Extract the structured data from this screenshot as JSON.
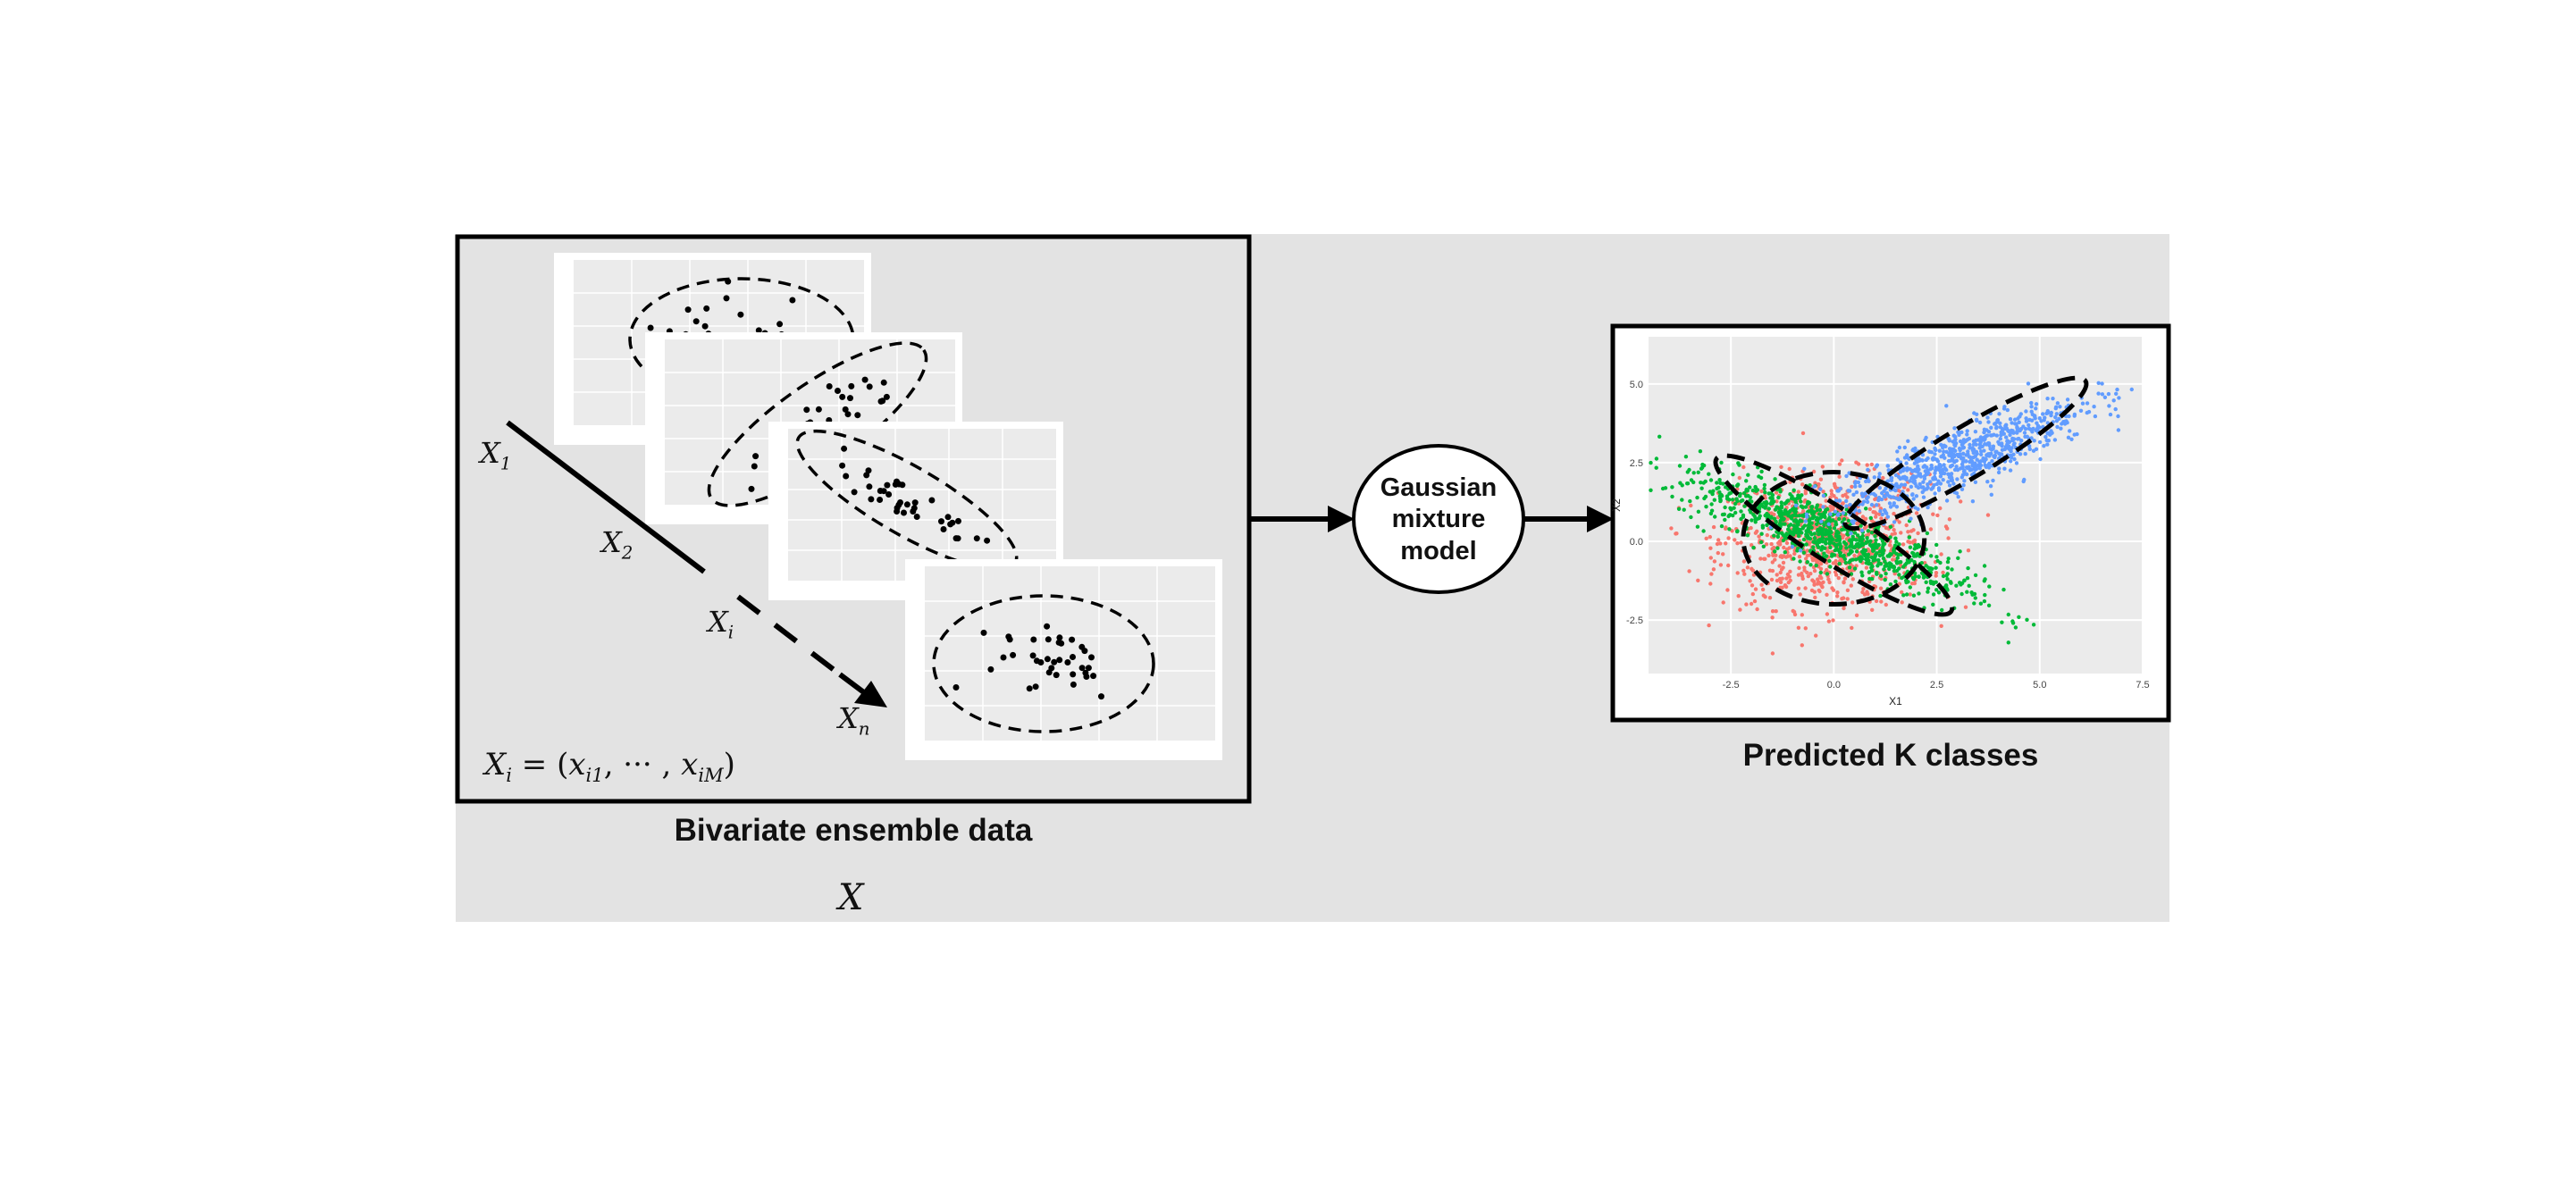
{
  "diagram": {
    "input_panel": {
      "caption": "Bivariate ensemble data",
      "symbol": "X",
      "sequence_labels": [
        {
          "base": "X",
          "sub": "1"
        },
        {
          "base": "X",
          "sub": "2"
        },
        {
          "base": "X",
          "sub": "i"
        },
        {
          "base": "X",
          "sub": "n"
        }
      ],
      "definition": {
        "base": "X",
        "sub": "i",
        "rhs_prefix": " = (",
        "term1_base": "x",
        "term1_sub": "i1",
        "ellipsis": ", ··· , ",
        "term2_base": "x",
        "term2_sub": "iM",
        "rhs_suffix": ")"
      }
    },
    "model_node": {
      "line1": "Gaussian",
      "line2": "mixture",
      "line3": "model"
    },
    "output_panel": {
      "caption": "Predicted K classes",
      "plot": {
        "xlabel": "X1",
        "ylabel": "X2",
        "xticks": [
          "-2.5",
          "0.0",
          "2.5",
          "5.0",
          "7.5"
        ],
        "yticks": [
          "5.0",
          "2.5",
          "0.0",
          "-2.5"
        ],
        "cluster_colors": {
          "red": "#f8766d",
          "green": "#00ba38",
          "blue": "#619cff"
        }
      }
    },
    "colors": {
      "background_panel": "#e3e3e3",
      "plot_bg": "#ebebeb",
      "stroke": "#000000"
    }
  }
}
